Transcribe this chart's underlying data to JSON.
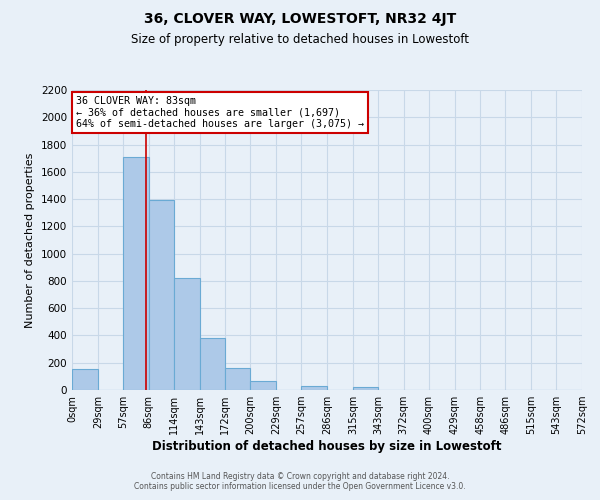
{
  "title": "36, CLOVER WAY, LOWESTOFT, NR32 4JT",
  "subtitle": "Size of property relative to detached houses in Lowestoft",
  "xlabel": "Distribution of detached houses by size in Lowestoft",
  "ylabel": "Number of detached properties",
  "bar_edges": [
    0,
    29,
    57,
    86,
    114,
    143,
    172,
    200,
    229,
    257,
    286,
    315,
    343,
    372,
    400,
    429,
    458,
    486,
    515,
    543,
    572
  ],
  "bar_heights": [
    155,
    0,
    1710,
    1390,
    820,
    380,
    160,
    65,
    0,
    30,
    0,
    25,
    0,
    0,
    0,
    0,
    0,
    0,
    0,
    0
  ],
  "bar_color": "#adc9e8",
  "bar_edge_color": "#6aaad4",
  "bar_linewidth": 0.8,
  "vline_x": 83,
  "vline_color": "#cc0000",
  "vline_linewidth": 1.2,
  "ylim": [
    0,
    2200
  ],
  "yticks": [
    0,
    200,
    400,
    600,
    800,
    1000,
    1200,
    1400,
    1600,
    1800,
    2000,
    2200
  ],
  "xtick_labels": [
    "0sqm",
    "29sqm",
    "57sqm",
    "86sqm",
    "114sqm",
    "143sqm",
    "172sqm",
    "200sqm",
    "229sqm",
    "257sqm",
    "286sqm",
    "315sqm",
    "343sqm",
    "372sqm",
    "400sqm",
    "429sqm",
    "458sqm",
    "486sqm",
    "515sqm",
    "543sqm",
    "572sqm"
  ],
  "xtick_positions": [
    0,
    29,
    57,
    86,
    114,
    143,
    172,
    200,
    229,
    257,
    286,
    315,
    343,
    372,
    400,
    429,
    458,
    486,
    515,
    543,
    572
  ],
  "annotation_title": "36 CLOVER WAY: 83sqm",
  "annotation_line1": "← 36% of detached houses are smaller (1,697)",
  "annotation_line2": "64% of semi-detached houses are larger (3,075) →",
  "annotation_box_color": "#ffffff",
  "annotation_box_edge": "#cc0000",
  "grid_color": "#c8d8e8",
  "background_color": "#e8f0f8",
  "footer1": "Contains HM Land Registry data © Crown copyright and database right 2024.",
  "footer2": "Contains public sector information licensed under the Open Government Licence v3.0."
}
